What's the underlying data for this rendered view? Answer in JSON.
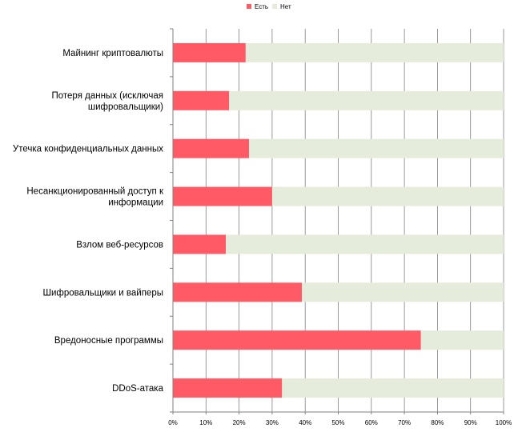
{
  "chart_data": {
    "type": "bar",
    "orientation": "horizontal",
    "stacked": true,
    "percent_stacked": true,
    "categories": [
      "Майнинг криптовалюты",
      "Потеря данных (исключая шифровальщики)",
      "Утечка конфиденциальных данных",
      "Несанкционированный доступ к информации",
      "Взлом веб-ресурсов",
      "Шифровальщики и вайперы",
      "Вредоносные программы",
      "DDoS-атака"
    ],
    "category_lines": [
      [
        "Майнинг криптовалюты"
      ],
      [
        "Потеря данных (исключая",
        "шифровальщики)"
      ],
      [
        "Утечка конфиденциальных данных"
      ],
      [
        "Несанкционированный доступ к",
        "информации"
      ],
      [
        "Взлом веб-ресурсов"
      ],
      [
        "Шифровальщики и вайперы"
      ],
      [
        "Вредоносные программы"
      ],
      [
        "DDoS-атака"
      ]
    ],
    "series": [
      {
        "name": "Есть",
        "color": "#ff5a66",
        "values": [
          22,
          17,
          23,
          30,
          16,
          39,
          75,
          33
        ]
      },
      {
        "name": "Нет",
        "color": "#e6ecdc",
        "values": [
          78,
          83,
          77,
          70,
          84,
          61,
          25,
          67
        ]
      }
    ],
    "xlim": [
      0,
      100
    ],
    "xticks": [
      0,
      10,
      20,
      30,
      40,
      50,
      60,
      70,
      80,
      90,
      100
    ],
    "xtick_labels": [
      "0%",
      "10%",
      "20%",
      "30%",
      "40%",
      "50%",
      "60%",
      "70%",
      "80%",
      "90%",
      "100%"
    ],
    "grid": true,
    "legend_position": "top",
    "title": "",
    "xlabel": "",
    "ylabel": ""
  },
  "colors": {
    "grid": "#808080",
    "axis": "#808080"
  }
}
